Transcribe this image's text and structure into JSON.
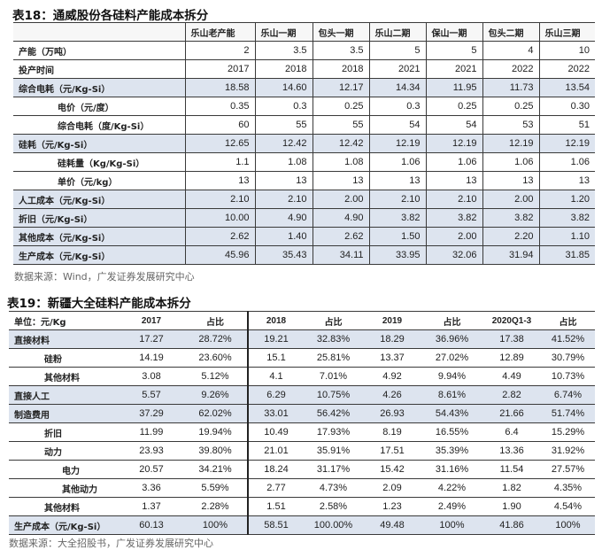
{
  "table18": {
    "title": "表18：通威股份各硅料产能成本拆分",
    "columns": [
      "",
      "乐山老产能",
      "乐山一期",
      "包头一期",
      "乐山二期",
      "保山一期",
      "包头二期",
      "乐山三期"
    ],
    "rows": [
      {
        "label": "产能（万吨）",
        "level": 0,
        "shaded": false,
        "values": [
          "2",
          "3.5",
          "3.5",
          "5",
          "5",
          "4",
          "10"
        ]
      },
      {
        "label": "投产时间",
        "level": 0,
        "shaded": false,
        "values": [
          "2017",
          "2018",
          "2018",
          "2021",
          "2021",
          "2022",
          "2022"
        ]
      },
      {
        "label": "综合电耗（元/Kg-Si）",
        "level": 0,
        "shaded": true,
        "values": [
          "18.58",
          "14.60",
          "12.17",
          "14.34",
          "11.95",
          "11.73",
          "13.54"
        ]
      },
      {
        "label": "电价（元/度）",
        "level": 1,
        "shaded": false,
        "values": [
          "0.35",
          "0.3",
          "0.25",
          "0.3",
          "0.25",
          "0.25",
          "0.30"
        ]
      },
      {
        "label": "综合电耗（度/Kg-Si）",
        "level": 1,
        "shaded": false,
        "values": [
          "60",
          "55",
          "55",
          "54",
          "54",
          "53",
          "51"
        ]
      },
      {
        "label": "硅耗（元/Kg-Si）",
        "level": 0,
        "shaded": true,
        "values": [
          "12.65",
          "12.42",
          "12.42",
          "12.19",
          "12.19",
          "12.19",
          "12.19"
        ]
      },
      {
        "label": "硅耗量（Kg/Kg-Si）",
        "level": 1,
        "shaded": false,
        "values": [
          "1.1",
          "1.08",
          "1.08",
          "1.06",
          "1.06",
          "1.06",
          "1.06"
        ]
      },
      {
        "label": "单价（元/kg）",
        "level": 1,
        "shaded": false,
        "values": [
          "13",
          "13",
          "13",
          "13",
          "13",
          "13",
          "13"
        ]
      },
      {
        "label": "人工成本（元/Kg-Si）",
        "level": 0,
        "shaded": true,
        "values": [
          "2.10",
          "2.10",
          "2.00",
          "2.10",
          "2.10",
          "2.00",
          "1.20"
        ]
      },
      {
        "label": "折旧（元/Kg-Si）",
        "level": 0,
        "shaded": true,
        "values": [
          "10.00",
          "4.90",
          "4.90",
          "3.82",
          "3.82",
          "3.82",
          "3.82"
        ]
      },
      {
        "label": "其他成本（元/Kg-Si）",
        "level": 0,
        "shaded": true,
        "values": [
          "2.62",
          "1.40",
          "2.62",
          "1.50",
          "2.00",
          "2.20",
          "1.10"
        ]
      },
      {
        "label": "生产成本（元/Kg-Si）",
        "level": 0,
        "shaded": true,
        "values": [
          "45.96",
          "35.43",
          "34.11",
          "33.95",
          "32.06",
          "31.94",
          "31.85"
        ]
      }
    ],
    "source": "数据来源：Wind，广发证券发展研究中心"
  },
  "table19": {
    "title": "表19：新疆大全硅料产能成本拆分",
    "columns": [
      "单位：元/Kg",
      "2017",
      "占比",
      "2018",
      "占比",
      "2019",
      "占比",
      "2020Q1-3",
      "占比"
    ],
    "rows": [
      {
        "label": "直接材料",
        "level": 0,
        "shaded": true,
        "values": [
          "17.27",
          "28.72%",
          "19.21",
          "32.83%",
          "18.29",
          "36.96%",
          "17.38",
          "41.52%"
        ]
      },
      {
        "label": "硅粉",
        "level": 1,
        "shaded": false,
        "values": [
          "14.19",
          "23.60%",
          "15.1",
          "25.81%",
          "13.37",
          "27.02%",
          "12.89",
          "30.79%"
        ]
      },
      {
        "label": "其他材料",
        "level": 1,
        "shaded": false,
        "values": [
          "3.08",
          "5.12%",
          "4.1",
          "7.01%",
          "4.92",
          "9.94%",
          "4.49",
          "10.73%"
        ]
      },
      {
        "label": "直接人工",
        "level": 0,
        "shaded": true,
        "values": [
          "5.57",
          "9.26%",
          "6.29",
          "10.75%",
          "4.26",
          "8.61%",
          "2.82",
          "6.74%"
        ]
      },
      {
        "label": "制造费用",
        "level": 0,
        "shaded": true,
        "values": [
          "37.29",
          "62.02%",
          "33.01",
          "56.42%",
          "26.93",
          "54.43%",
          "21.66",
          "51.74%"
        ]
      },
      {
        "label": "折旧",
        "level": 1,
        "shaded": false,
        "values": [
          "11.99",
          "19.94%",
          "10.49",
          "17.93%",
          "8.19",
          "16.55%",
          "6.4",
          "15.29%"
        ]
      },
      {
        "label": "动力",
        "level": 1,
        "shaded": false,
        "values": [
          "23.93",
          "39.80%",
          "21.01",
          "35.91%",
          "17.51",
          "35.39%",
          "13.36",
          "31.92%"
        ]
      },
      {
        "label": "电力",
        "level": 2,
        "shaded": false,
        "values": [
          "20.57",
          "34.21%",
          "18.24",
          "31.17%",
          "15.42",
          "31.16%",
          "11.54",
          "27.57%"
        ]
      },
      {
        "label": "其他动力",
        "level": 2,
        "shaded": false,
        "values": [
          "3.36",
          "5.59%",
          "2.77",
          "4.73%",
          "2.09",
          "4.22%",
          "1.82",
          "4.35%"
        ]
      },
      {
        "label": "其他材料",
        "level": 1,
        "shaded": false,
        "values": [
          "1.37",
          "2.28%",
          "1.51",
          "2.58%",
          "1.23",
          "2.49%",
          "1.90",
          "4.54%"
        ]
      },
      {
        "label": "生产成本（元/Kg-Si）",
        "level": 0,
        "shaded": true,
        "values": [
          "60.13",
          "100%",
          "58.51",
          "100.00%",
          "49.48",
          "100%",
          "41.86",
          "100%"
        ]
      }
    ],
    "source": "数据来源：大全招股书，广发证券发展研究中心"
  },
  "colors": {
    "shade": "#dde4ef",
    "rule": "#3a3a3a"
  }
}
